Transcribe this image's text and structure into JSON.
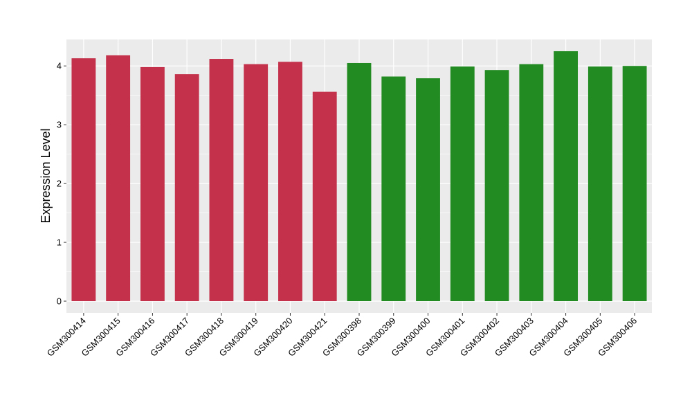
{
  "chart_data": {
    "type": "bar",
    "title": "",
    "xlabel": "",
    "ylabel": "Expression Level",
    "ylim": [
      -0.2,
      4.45
    ],
    "yticks": [
      0,
      1,
      2,
      3,
      4
    ],
    "grid": true,
    "panel_background": "#EBEBEB",
    "grid_color": "#FFFFFF",
    "categories": [
      "GSM300414",
      "GSM300415",
      "GSM300416",
      "GSM300417",
      "GSM300418",
      "GSM300419",
      "GSM300420",
      "GSM300421",
      "GSM300398",
      "GSM300399",
      "GSM300400",
      "GSM300401",
      "GSM300402",
      "GSM300403",
      "GSM300404",
      "GSM300405",
      "GSM300406"
    ],
    "values": [
      4.13,
      4.18,
      3.98,
      3.86,
      4.12,
      4.03,
      4.07,
      3.56,
      4.05,
      3.82,
      3.79,
      3.99,
      3.93,
      4.03,
      4.25,
      3.99,
      4.0
    ],
    "colors": [
      "#C3314A",
      "#C3314A",
      "#C3314A",
      "#C3314A",
      "#C3314A",
      "#C3314A",
      "#C3314A",
      "#C3314A",
      "#228B22",
      "#228B22",
      "#228B22",
      "#228B22",
      "#228B22",
      "#228B22",
      "#228B22",
      "#228B22",
      "#228B22"
    ]
  }
}
